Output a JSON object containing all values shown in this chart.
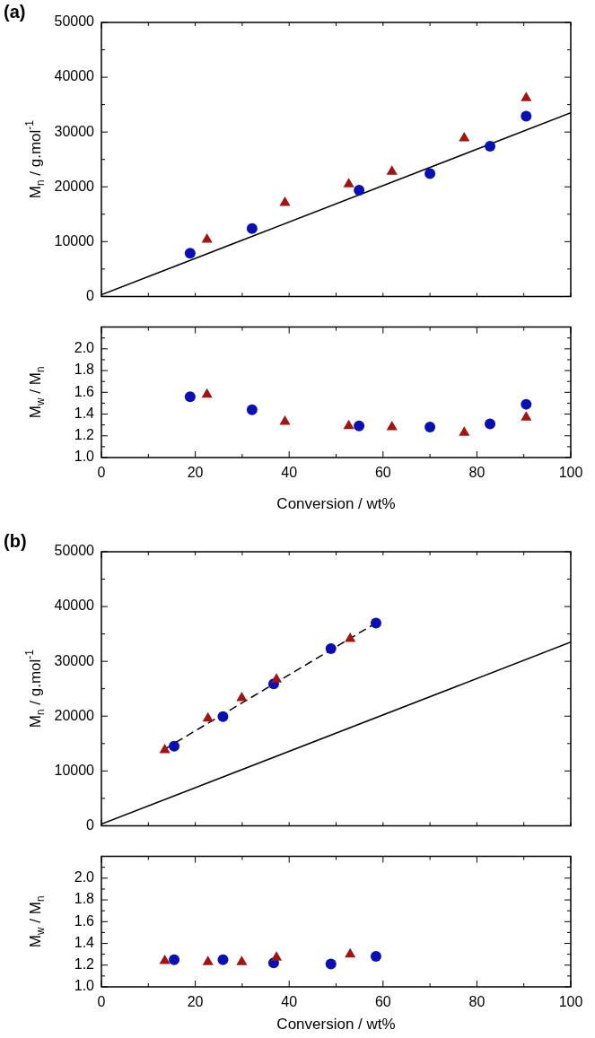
{
  "chart_data": [
    {
      "type": "scatter",
      "title": "(a)",
      "ylabel": "M$_{n}$ / g.mol$^{-1}$",
      "xlim": [
        0,
        100
      ],
      "ylim": [
        0,
        50000
      ],
      "grid": false,
      "legend": false,
      "tick_labels": "y",
      "xticks": [
        0,
        {
          "value": 10,
          "label": null
        },
        {
          "value": 20,
          "label": null
        },
        {
          "value": 30,
          "label": null
        },
        {
          "value": 40,
          "label": null
        },
        {
          "value": 50,
          "label": null
        },
        {
          "value": 60,
          "label": null
        },
        {
          "value": 70,
          "label": null
        },
        {
          "value": 80,
          "label": null
        },
        {
          "value": 90,
          "label": null
        },
        {
          "value": 100,
          "label": null
        }
      ],
      "yticks": [
        0,
        {
          "value": 5000,
          "label": null
        },
        10000,
        {
          "value": 15000,
          "label": null
        },
        20000,
        {
          "value": 25000,
          "label": null
        },
        30000,
        {
          "value": 35000,
          "label": null
        },
        40000,
        {
          "value": 45000,
          "label": null
        },
        50000
      ],
      "series": [
        {
          "type": "scatter",
          "marker": "circle",
          "color": "#0a0fb4",
          "x": [
            18.9,
            32.1,
            54.9,
            70,
            82.8,
            90.5
          ],
          "values": [
            7900,
            12400,
            19400,
            22400,
            27400,
            32900
          ]
        },
        {
          "type": "scatter",
          "marker": "triangle",
          "color": "#a01414",
          "x": [
            22.5,
            39.1,
            52.7,
            61.9,
            77.3,
            90.5
          ],
          "values": [
            10400,
            17100,
            20500,
            22800,
            28900,
            36200
          ]
        },
        {
          "type": "line",
          "marker": "none",
          "line_style": "solid",
          "color": "#000000",
          "x": [
            0,
            100
          ],
          "values": [
            300,
            33500
          ]
        }
      ]
    },
    {
      "type": "scatter",
      "ylabel": "M$_{w}$ / M$_{n}$",
      "xlabel": "Conversion / wt%",
      "xlim": [
        0,
        100
      ],
      "ylim": [
        1.0,
        2.2
      ],
      "grid": false,
      "legend": false,
      "xticks": [
        0,
        {
          "value": 10,
          "label": null
        },
        20,
        {
          "value": 30,
          "label": null
        },
        40,
        {
          "value": 50,
          "label": null
        },
        60,
        {
          "value": 70,
          "label": null
        },
        80,
        {
          "value": 90,
          "label": null
        },
        100
      ],
      "yticks": [
        {
          "value": 1.0,
          "label": "1.0"
        },
        {
          "value": 1.1,
          "label": null
        },
        1.2,
        {
          "value": 1.3,
          "label": null
        },
        1.4,
        {
          "value": 1.5,
          "label": null
        },
        1.6,
        {
          "value": 1.7,
          "label": null
        },
        1.8,
        {
          "value": 1.9,
          "label": null
        },
        {
          "value": 2.0,
          "label": "2.0"
        },
        {
          "value": 2.1,
          "label": null
        }
      ],
      "series": [
        {
          "type": "scatter",
          "marker": "circle",
          "color": "#0a0fb4",
          "x": [
            18.9,
            32.1,
            54.9,
            70,
            82.8,
            90.5
          ],
          "values": [
            1.56,
            1.44,
            1.29,
            1.28,
            1.31,
            1.49
          ]
        },
        {
          "type": "scatter",
          "marker": "triangle",
          "color": "#a01414",
          "x": [
            22.5,
            39.1,
            52.7,
            61.9,
            77.3,
            90.5
          ],
          "values": [
            1.58,
            1.33,
            1.29,
            1.28,
            1.23,
            1.37
          ]
        }
      ]
    },
    {
      "type": "scatter",
      "title": "(b)",
      "ylabel": "M$_{n}$ / g.mol$^{-1}$",
      "xlim": [
        0,
        100
      ],
      "ylim": [
        0,
        50000
      ],
      "grid": false,
      "legend": false,
      "tick_labels": "y",
      "xticks": [
        0,
        {
          "value": 10,
          "label": null
        },
        {
          "value": 20,
          "label": null
        },
        {
          "value": 30,
          "label": null
        },
        {
          "value": 40,
          "label": null
        },
        {
          "value": 50,
          "label": null
        },
        {
          "value": 60,
          "label": null
        },
        {
          "value": 70,
          "label": null
        },
        {
          "value": 80,
          "label": null
        },
        {
          "value": 90,
          "label": null
        },
        {
          "value": 100,
          "label": null
        }
      ],
      "yticks": [
        0,
        {
          "value": 5000,
          "label": null
        },
        10000,
        {
          "value": 15000,
          "label": null
        },
        20000,
        {
          "value": 25000,
          "label": null
        },
        30000,
        {
          "value": 35000,
          "label": null
        },
        40000,
        {
          "value": 45000,
          "label": null
        },
        50000
      ],
      "series": [
        {
          "type": "scatter",
          "marker": "circle",
          "color": "#0a0fb4",
          "x": [
            15.5,
            25.9,
            36.7,
            48.9,
            58.5
          ],
          "values": [
            14500,
            19900,
            25900,
            32300,
            37000
          ]
        },
        {
          "type": "scatter",
          "marker": "triangle",
          "color": "#a01414",
          "x": [
            13.5,
            22.7,
            29.9,
            37.3,
            53
          ],
          "values": [
            13800,
            19600,
            23300,
            26700,
            34100
          ]
        },
        {
          "type": "line",
          "marker": "none",
          "line_style": "dashed",
          "color": "#000000",
          "x": [
            13.5,
            58.5
          ],
          "values": [
            14000,
            37000
          ]
        },
        {
          "type": "line",
          "marker": "none",
          "line_style": "solid",
          "color": "#000000",
          "x": [
            0,
            100
          ],
          "values": [
            300,
            33500
          ]
        }
      ]
    },
    {
      "type": "scatter",
      "ylabel": "M$_{w}$ / M$_{n}$",
      "xlabel": "Conversion / wt%",
      "xlim": [
        0,
        100
      ],
      "ylim": [
        1.0,
        2.2
      ],
      "grid": false,
      "legend": false,
      "xticks": [
        0,
        {
          "value": 10,
          "label": null
        },
        20,
        {
          "value": 30,
          "label": null
        },
        40,
        {
          "value": 50,
          "label": null
        },
        60,
        {
          "value": 70,
          "label": null
        },
        80,
        {
          "value": 90,
          "label": null
        },
        100
      ],
      "yticks": [
        {
          "value": 1.0,
          "label": "1.0"
        },
        {
          "value": 1.1,
          "label": null
        },
        1.2,
        {
          "value": 1.3,
          "label": null
        },
        1.4,
        {
          "value": 1.5,
          "label": null
        },
        1.6,
        {
          "value": 1.7,
          "label": null
        },
        1.8,
        {
          "value": 1.9,
          "label": null
        },
        {
          "value": 2.0,
          "label": "2.0"
        },
        {
          "value": 2.1,
          "label": null
        }
      ],
      "series": [
        {
          "type": "scatter",
          "marker": "circle",
          "color": "#0a0fb4",
          "x": [
            15.5,
            25.9,
            36.7,
            48.9,
            58.5
          ],
          "values": [
            1.25,
            1.25,
            1.22,
            1.21,
            1.28
          ]
        },
        {
          "type": "scatter",
          "marker": "triangle",
          "color": "#a01414",
          "x": [
            13.5,
            22.7,
            29.9,
            37.3,
            53
          ],
          "values": [
            1.24,
            1.23,
            1.23,
            1.27,
            1.3
          ]
        }
      ]
    }
  ]
}
